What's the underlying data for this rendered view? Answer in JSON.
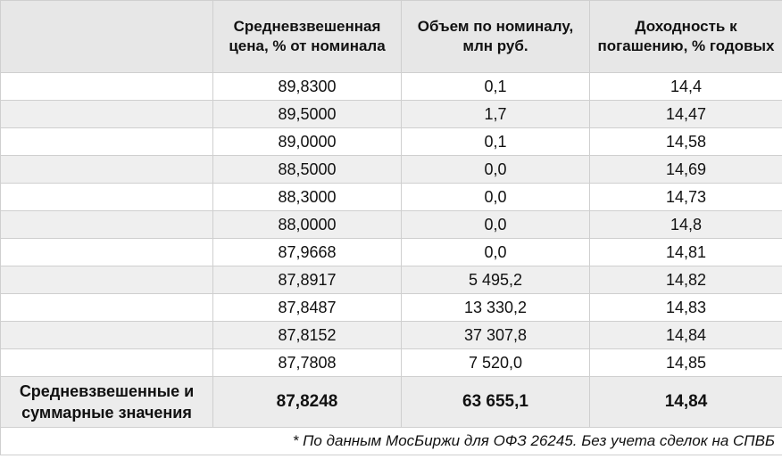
{
  "table": {
    "headers": [
      "",
      "Средневзвешенная цена, % от номинала",
      "Объем по номиналу, млн руб.",
      "Доходность к погашению, % годовых"
    ],
    "rows": [
      {
        "label": "",
        "price": "89,8300",
        "volume": "0,1",
        "yield": "14,4"
      },
      {
        "label": "",
        "price": "89,5000",
        "volume": "1,7",
        "yield": "14,47"
      },
      {
        "label": "",
        "price": "89,0000",
        "volume": "0,1",
        "yield": "14,58"
      },
      {
        "label": "",
        "price": "88,5000",
        "volume": "0,0",
        "yield": "14,69"
      },
      {
        "label": "",
        "price": "88,3000",
        "volume": "0,0",
        "yield": "14,73"
      },
      {
        "label": "",
        "price": "88,0000",
        "volume": "0,0",
        "yield": "14,8"
      },
      {
        "label": "",
        "price": "87,9668",
        "volume": "0,0",
        "yield": "14,81"
      },
      {
        "label": "",
        "price": "87,8917",
        "volume": "5 495,2",
        "yield": "14,82"
      },
      {
        "label": "",
        "price": "87,8487",
        "volume": "13 330,2",
        "yield": "14,83"
      },
      {
        "label": "",
        "price": "87,8152",
        "volume": "37 307,8",
        "yield": "14,84"
      },
      {
        "label": "",
        "price": "87,7808",
        "volume": "7 520,0",
        "yield": "14,85"
      }
    ],
    "total": {
      "label": "Средневзвешенные и суммарные значения",
      "price": "87,8248",
      "volume": "63 655,1",
      "yield": "14,84"
    },
    "footnote": "* По данным МосБиржи для ОФЗ 26245. Без учета сделок на СПВБ"
  }
}
